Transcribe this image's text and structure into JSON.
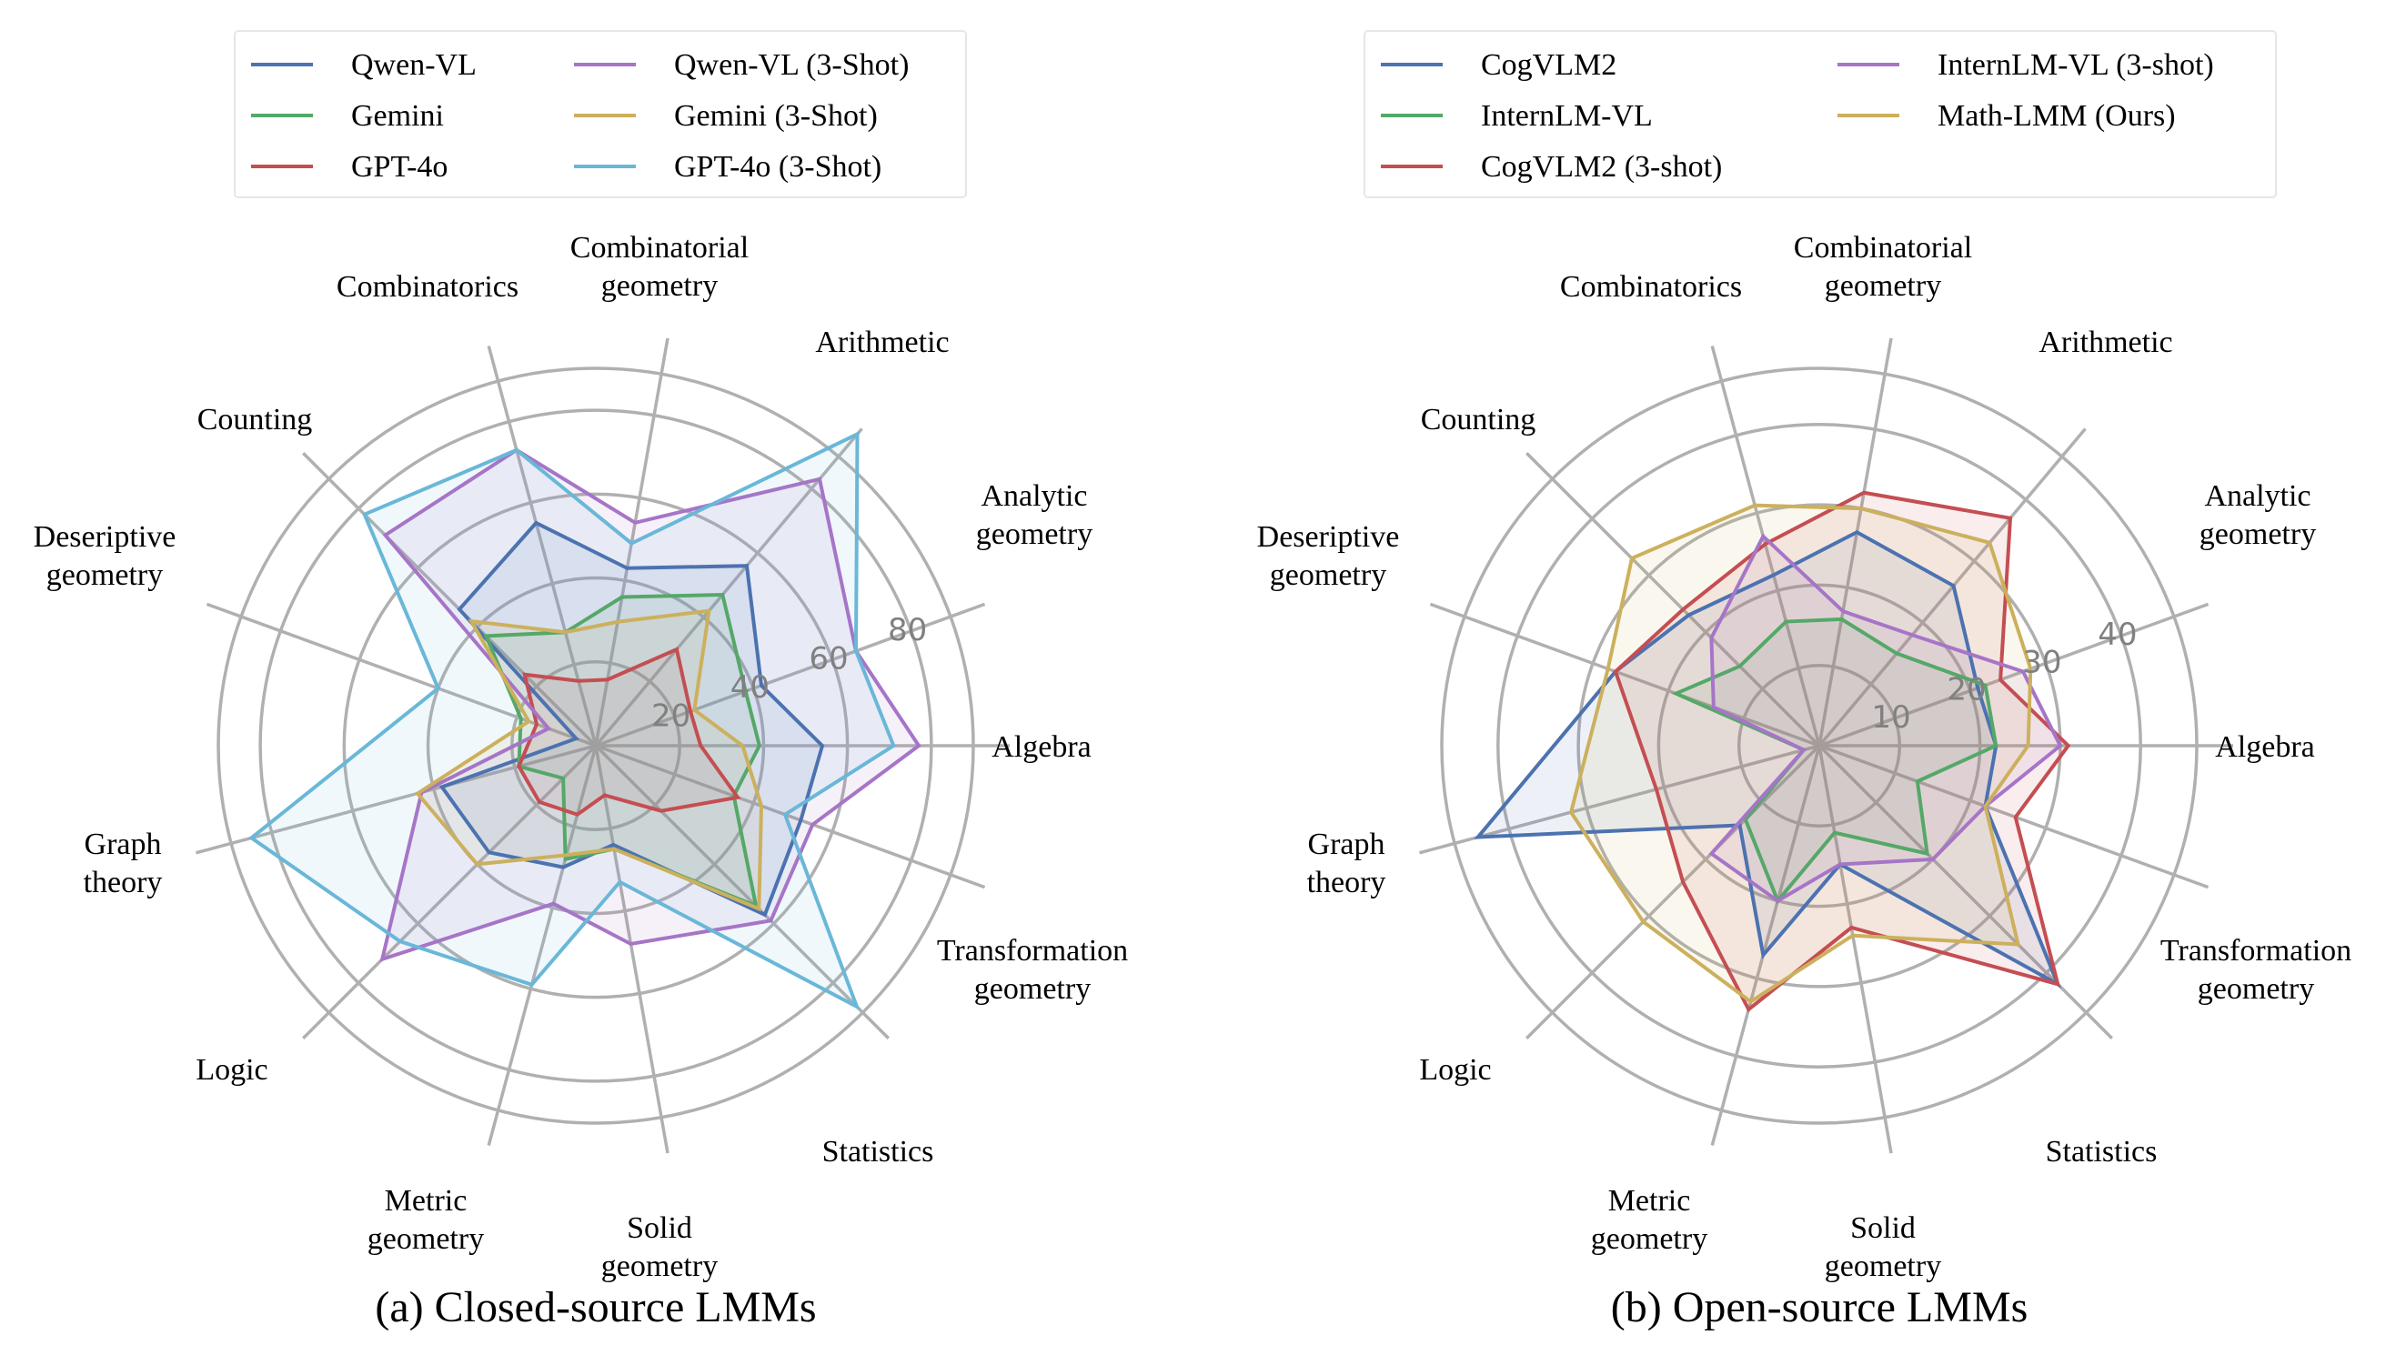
{
  "chart_data": [
    {
      "type": "radar",
      "caption": "(a) Closed-source LMMs",
      "axes": [
        "Algebra",
        "Analytic\ngeometry",
        "Arithmetic",
        "Combinatorial\ngeometry",
        "Combinatorics",
        "Counting",
        "Deseriptive\ngeometry",
        "Graph\ntheory",
        "Logic",
        "Metric\ngeometry",
        "Solid\ngeometry",
        "Statistics",
        "Transformation\ngeometry"
      ],
      "rmax": 90,
      "ticks": [
        20,
        40,
        60,
        80
      ],
      "tick_labels": [
        "20",
        "40",
        "60",
        "80"
      ],
      "legend_placement": "top",
      "series": [
        {
          "name": "Qwen-VL",
          "color": "#4c72b0",
          "values": [
            54,
            42,
            56,
            43,
            55,
            46,
            5,
            38,
            36,
            30,
            24,
            57,
            52
          ]
        },
        {
          "name": "Gemini",
          "color": "#55a868",
          "values": [
            39,
            38,
            47,
            36,
            28,
            37,
            19,
            19,
            11,
            28,
            25,
            54,
            35
          ]
        },
        {
          "name": "GPT-4o",
          "color": "#c44e52",
          "values": [
            25,
            24,
            30,
            16,
            16,
            24,
            15,
            19,
            19,
            17,
            12,
            22,
            36
          ]
        },
        {
          "name": "Qwen-VL (3-Shot)",
          "color": "#a675c7",
          "values": [
            77,
            66,
            83,
            54,
            73,
            71,
            12,
            43,
            72,
            39,
            48,
            59,
            55
          ]
        },
        {
          "name": "Gemini (3-Shot)",
          "color": "#ccb05d",
          "values": [
            35,
            25,
            42,
            30,
            28,
            42,
            17,
            44,
            40,
            27,
            25,
            55,
            42
          ]
        },
        {
          "name": "GPT-4o (3-Shot)",
          "color": "#6ab7d8",
          "values": [
            71,
            66,
            97,
            49,
            73,
            78,
            40,
            85,
            66,
            59,
            33,
            88,
            48
          ]
        }
      ]
    },
    {
      "type": "radar",
      "caption": "(b) Open-source LMMs",
      "axes": [
        "Algebra",
        "Analytic\ngeometry",
        "Arithmetic",
        "Combinatorial\ngeometry",
        "Combinatorics",
        "Counting",
        "Deseriptive\ngeometry",
        "Graph\ntheory",
        "Logic",
        "Metric\ngeometry",
        "Solid\ngeometry",
        "Statistics",
        "Transformation\ngeometry"
      ],
      "rmax": 47,
      "ticks": [
        10,
        20,
        30,
        40
      ],
      "tick_labels": [
        "10",
        "20",
        "30",
        "40"
      ],
      "legend_placement": "top",
      "series": [
        {
          "name": "CogVLM2",
          "color": "#4c72b0",
          "values": [
            22,
            21,
            26,
            27,
            22,
            23,
            27,
            44,
            14,
            27,
            15,
            42,
            22
          ]
        },
        {
          "name": "InternLM-VL",
          "color": "#55a868",
          "values": [
            22,
            22,
            15,
            16,
            16,
            14,
            19,
            2,
            13,
            20,
            11,
            19,
            13
          ]
        },
        {
          "name": "CogVLM2 (3-shot)",
          "color": "#c44e52",
          "values": [
            31,
            24,
            37,
            32,
            26,
            24,
            27,
            21,
            24,
            34,
            23,
            42,
            26
          ]
        },
        {
          "name": "InternLM-VL (3-shot)",
          "color": "#a675c7",
          "values": [
            30,
            27,
            18,
            17,
            27,
            19,
            14,
            2,
            19,
            20,
            15,
            20,
            22
          ]
        },
        {
          "name": "Math-LMM (Ours)",
          "color": "#ccb05d",
          "values": [
            26,
            28,
            33,
            30,
            31,
            33,
            28,
            32,
            31,
            33,
            24,
            35,
            22
          ]
        }
      ]
    }
  ]
}
